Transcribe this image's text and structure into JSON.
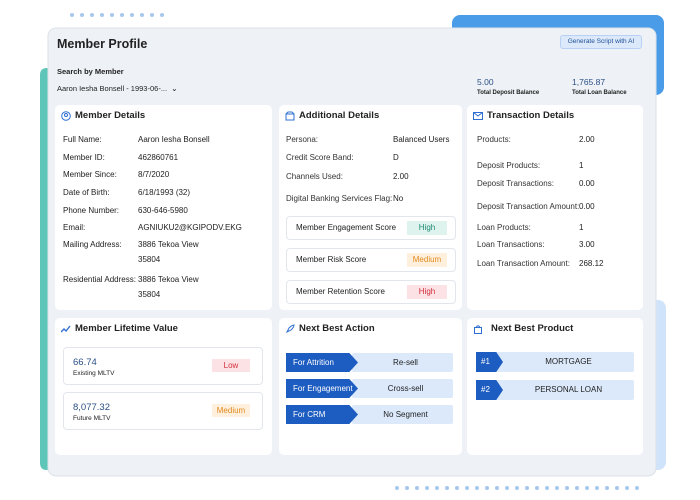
{
  "header": {
    "title": "Member Profile",
    "button": "Generate Script with AI"
  },
  "search": {
    "label": "Search by Member",
    "value": "Aaron Iesha Bonsell - 1993-06-..."
  },
  "summary": [
    {
      "value": "5.00",
      "label": "Total Deposit Balance"
    },
    {
      "value": "1,765.87",
      "label": "Total Loan Balance"
    }
  ],
  "member_details": {
    "title": "Member Details",
    "rows": [
      {
        "label": "Full Name:",
        "value": [
          "Aaron Iesha Bonsell"
        ]
      },
      {
        "label": "Member ID:",
        "value": [
          "462860761"
        ]
      },
      {
        "label": "Member Since:",
        "value": [
          "8/7/2020"
        ]
      },
      {
        "label": "Date of Birth:",
        "value": [
          "6/18/1993 (32)"
        ]
      },
      {
        "label": "Phone Number:",
        "value": [
          "630-646-5980"
        ]
      },
      {
        "label": "Email:",
        "value": [
          "AGNIUKU2@KGIPODV.EKG"
        ]
      },
      {
        "label": "Mailing Address:",
        "value": [
          "3886 Tekoa View",
          "35804"
        ]
      },
      {
        "label": "Residential Address:",
        "value": [
          "3886 Tekoa View",
          "35804"
        ]
      }
    ]
  },
  "additional_details": {
    "title": "Additional Details",
    "rows": [
      {
        "label": "Persona:",
        "value": "Balanced Users"
      },
      {
        "label": "Credit Score Band:",
        "value": "D"
      },
      {
        "label": "Channels Used:",
        "value": "2.00"
      },
      {
        "label": "Digital Banking Services Flag:",
        "value": "No"
      }
    ],
    "scores": [
      {
        "label": "Member Engagement Score",
        "value": "High"
      },
      {
        "label": "Member Risk Score",
        "value": "Medium"
      },
      {
        "label": "Member Retention Score",
        "value": "High"
      }
    ]
  },
  "transaction_details": {
    "title": "Transaction Details",
    "rows": [
      {
        "label": "Products:",
        "value": "2.00"
      },
      {
        "label": "Deposit Products:",
        "value": "1"
      },
      {
        "label": "Deposit Transactions:",
        "value": "0.00"
      },
      {
        "label": "Deposit Transaction Amount:",
        "value": "0.00"
      },
      {
        "label": "Loan Products:",
        "value": "1"
      },
      {
        "label": "Loan Transactions:",
        "value": "3.00"
      },
      {
        "label": "Loan Transaction Amount:",
        "value": "268.12"
      }
    ]
  },
  "lifetime_value": {
    "title": "Member Lifetime Value",
    "items": [
      {
        "value": "66.74",
        "label": "Existing MLTV",
        "level": "Low"
      },
      {
        "value": "8,077.32",
        "label": "Future MLTV",
        "level": "Medium"
      }
    ]
  },
  "next_best_action": {
    "title": "Next Best Action",
    "items": [
      {
        "label": "For Attrition",
        "value": "Re-sell"
      },
      {
        "label": "For Engagement",
        "value": "Cross-sell"
      },
      {
        "label": "For CRM",
        "value": "No Segment"
      }
    ]
  },
  "next_best_product": {
    "title": "Next Best Product",
    "items": [
      {
        "rank": "#1",
        "value": "MORTGAGE"
      },
      {
        "rank": "#2",
        "value": "PERSONAL LOAN"
      }
    ]
  }
}
